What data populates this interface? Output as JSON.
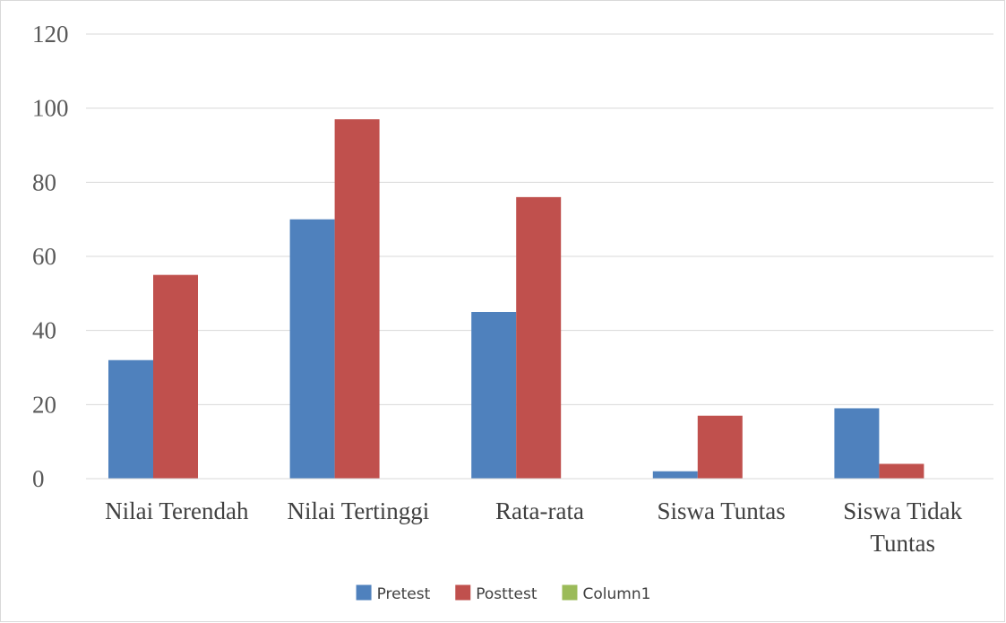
{
  "chart_data": {
    "type": "bar",
    "categories": [
      [
        "Nilai Terendah"
      ],
      [
        "Nilai Tertinggi"
      ],
      [
        "Rata-rata"
      ],
      [
        "Siswa Tuntas"
      ],
      [
        "Siswa Tidak",
        "Tuntas"
      ]
    ],
    "series": [
      {
        "name": "Pretest",
        "color": "#4f81bd",
        "values": [
          32,
          70,
          45,
          2,
          19
        ]
      },
      {
        "name": "Posttest",
        "color": "#c0504d",
        "values": [
          55,
          97,
          76,
          17,
          4
        ]
      },
      {
        "name": "Column1",
        "color": "#9bbb59",
        "values": [
          null,
          null,
          null,
          null,
          null
        ]
      }
    ],
    "ylim": [
      0,
      120
    ],
    "yticks": [
      0,
      20,
      40,
      60,
      80,
      100,
      120
    ],
    "grid": true,
    "legend_position": "bottom",
    "title": "",
    "xlabel": "",
    "ylabel": ""
  }
}
